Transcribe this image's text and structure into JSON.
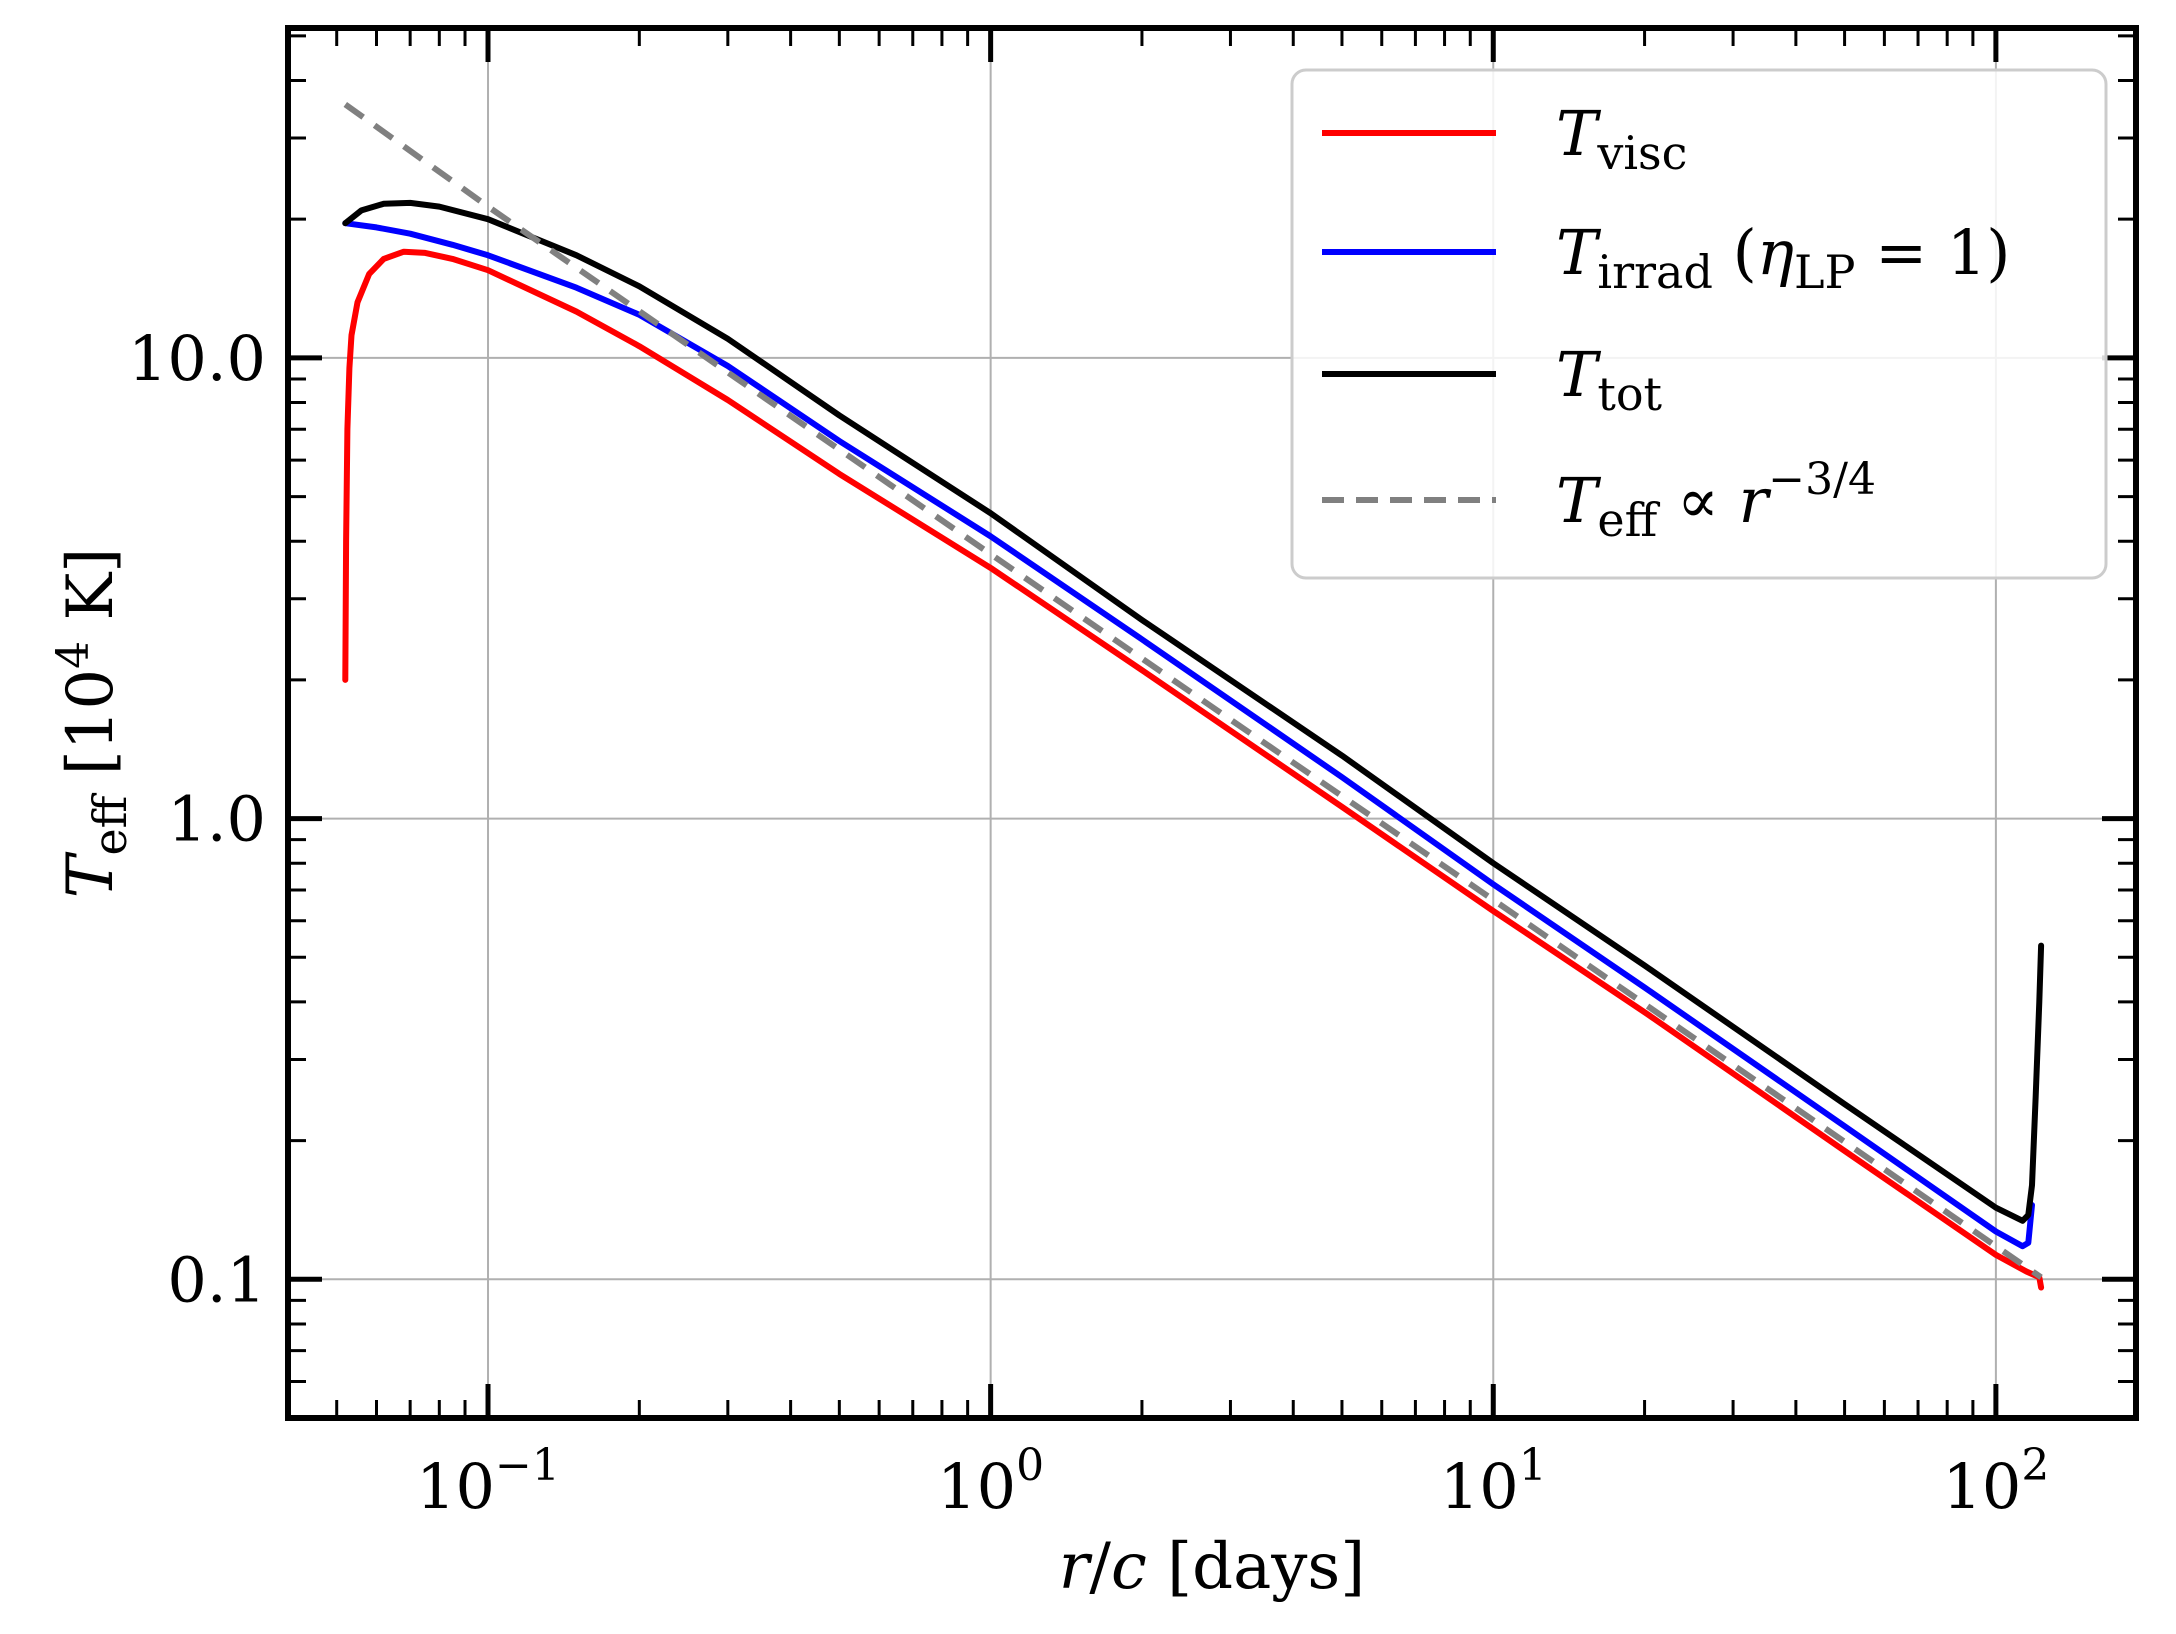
{
  "chart_data": {
    "type": "line",
    "xscale": "log",
    "yscale": "log",
    "xlim": [
      0.04,
      190
    ],
    "ylim": [
      0.05,
      52
    ],
    "xlabel": {
      "var1": "r",
      "sep": "/",
      "var2": "c",
      "units": "[days]"
    },
    "ylabel": {
      "var": "T",
      "sub": "eff",
      "units_open": "[10",
      "units_sup": "4",
      "units_close": " K]"
    },
    "xticks": [
      {
        "value": 0.1,
        "base": "10",
        "exp": "−1"
      },
      {
        "value": 1,
        "base": "10",
        "exp": "0"
      },
      {
        "value": 10,
        "base": "10",
        "exp": "1"
      },
      {
        "value": 100,
        "base": "10",
        "exp": "2"
      }
    ],
    "yticks": [
      {
        "value": 0.1,
        "label": "0.1"
      },
      {
        "value": 1,
        "label": "1.0"
      },
      {
        "value": 10,
        "label": "10.0"
      }
    ],
    "grid": true,
    "legend_position": "top-right",
    "series": [
      {
        "key": "visc",
        "name": {
          "var": "T",
          "sub": "visc",
          "extra": ""
        },
        "color": "#ff0000",
        "dash": "solid",
        "points": [
          [
            0.052,
            2.0
          ],
          [
            0.0522,
            4.0
          ],
          [
            0.0525,
            7.0
          ],
          [
            0.053,
            9.5
          ],
          [
            0.0535,
            11.2
          ],
          [
            0.055,
            13.2
          ],
          [
            0.058,
            15.2
          ],
          [
            0.062,
            16.4
          ],
          [
            0.068,
            17.0
          ],
          [
            0.075,
            16.9
          ],
          [
            0.085,
            16.4
          ],
          [
            0.1,
            15.5
          ],
          [
            0.15,
            12.6
          ],
          [
            0.2,
            10.6
          ],
          [
            0.3,
            8.1
          ],
          [
            0.5,
            5.6
          ],
          [
            1,
            3.5
          ],
          [
            2,
            2.1
          ],
          [
            5,
            1.06
          ],
          [
            10,
            0.63
          ],
          [
            20,
            0.38
          ],
          [
            50,
            0.19
          ],
          [
            100,
            0.113
          ],
          [
            115,
            0.104
          ],
          [
            122,
            0.101
          ],
          [
            123,
            0.096
          ]
        ]
      },
      {
        "key": "irrad",
        "name": {
          "var": "T",
          "sub": "irrad",
          "extra": " (η<sub>LP</sub> = 1)"
        },
        "color": "#0000ff",
        "dash": "solid",
        "points": [
          [
            0.052,
            19.6
          ],
          [
            0.06,
            19.2
          ],
          [
            0.07,
            18.6
          ],
          [
            0.085,
            17.6
          ],
          [
            0.1,
            16.7
          ],
          [
            0.15,
            14.2
          ],
          [
            0.2,
            12.4
          ],
          [
            0.3,
            9.6
          ],
          [
            0.5,
            6.6
          ],
          [
            1,
            4.1
          ],
          [
            2,
            2.45
          ],
          [
            5,
            1.23
          ],
          [
            10,
            0.72
          ],
          [
            20,
            0.43
          ],
          [
            50,
            0.215
          ],
          [
            100,
            0.127
          ],
          [
            113,
            0.118
          ],
          [
            116,
            0.12
          ],
          [
            118,
            0.145
          ]
        ]
      },
      {
        "key": "tot",
        "name": {
          "var": "T",
          "sub": "tot",
          "extra": ""
        },
        "color": "#000000",
        "dash": "solid",
        "points": [
          [
            0.052,
            19.6
          ],
          [
            0.056,
            20.9
          ],
          [
            0.062,
            21.6
          ],
          [
            0.07,
            21.7
          ],
          [
            0.08,
            21.3
          ],
          [
            0.1,
            20.0
          ],
          [
            0.15,
            16.7
          ],
          [
            0.2,
            14.3
          ],
          [
            0.3,
            11.0
          ],
          [
            0.5,
            7.5
          ],
          [
            1,
            4.6
          ],
          [
            2,
            2.7
          ],
          [
            5,
            1.37
          ],
          [
            10,
            0.8
          ],
          [
            20,
            0.48
          ],
          [
            50,
            0.24
          ],
          [
            100,
            0.143
          ],
          [
            113,
            0.134
          ],
          [
            116,
            0.138
          ],
          [
            118,
            0.16
          ],
          [
            120,
            0.25
          ],
          [
            122,
            0.4
          ],
          [
            123,
            0.53
          ]
        ]
      },
      {
        "key": "powerlaw",
        "name": {
          "var": "T",
          "sub": "eff",
          "extra": " ∝ r<sup>−3/4</sup>"
        },
        "color": "#808080",
        "dash": "dashed",
        "points": [
          [
            0.052,
            35.5
          ],
          [
            0.1,
            21.3
          ],
          [
            0.3,
            9.3
          ],
          [
            1,
            3.75
          ],
          [
            3,
            1.64
          ],
          [
            10,
            0.666
          ],
          [
            30,
            0.292
          ],
          [
            100,
            0.118
          ],
          [
            123,
            0.101
          ]
        ]
      }
    ]
  }
}
